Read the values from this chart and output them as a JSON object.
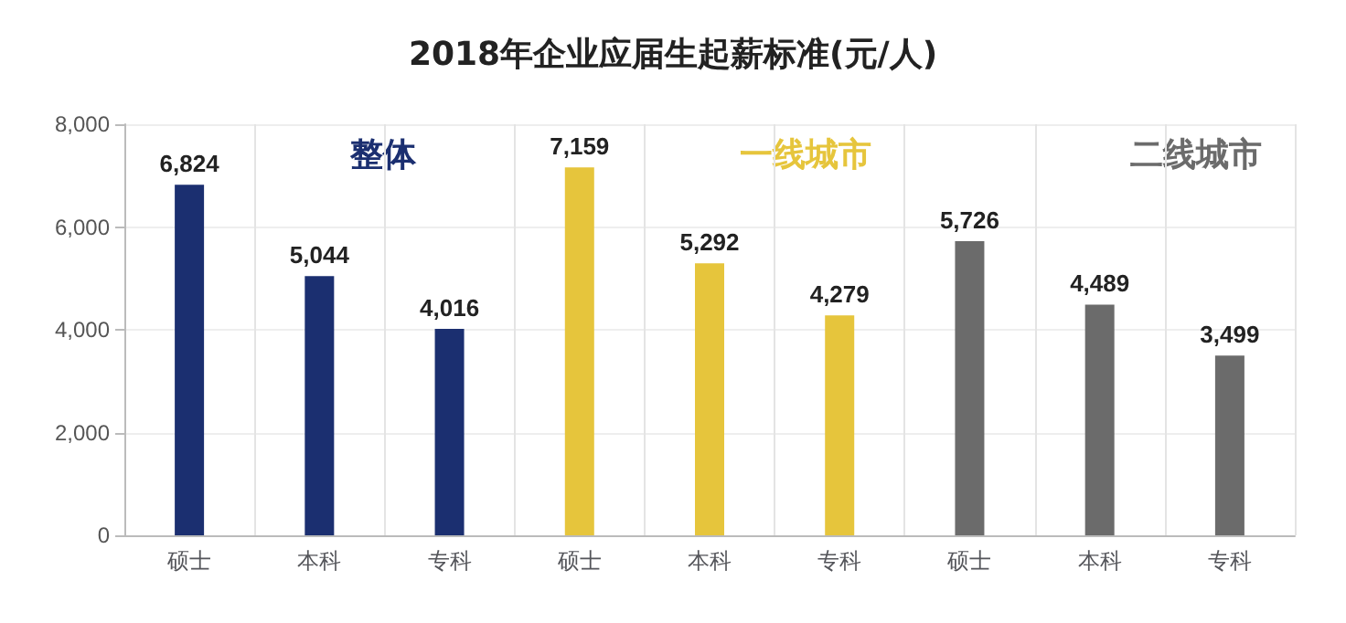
{
  "chart_data": {
    "type": "bar",
    "title": "2018年企业应届生起薪标准(元/人)",
    "categories": [
      "硕士",
      "本科",
      "专科",
      "硕士",
      "本科",
      "专科",
      "硕士",
      "本科",
      "专科"
    ],
    "values": [
      6824,
      5044,
      4016,
      7159,
      5292,
      4279,
      5726,
      4489,
      3499
    ],
    "value_labels": [
      "6,824",
      "5,044",
      "4,016",
      "7,159",
      "5,292",
      "4,279",
      "5,726",
      "4,489",
      "3,499"
    ],
    "colors": [
      "#1b2f70",
      "#1b2f70",
      "#1b2f70",
      "#e6c53c",
      "#e6c53c",
      "#e6c53c",
      "#6b6b6b",
      "#6b6b6b",
      "#6b6b6b"
    ],
    "ylim": [
      0,
      8000
    ],
    "yticks": [
      0,
      {
        "value": 2000,
        "label": "2,000"
      },
      {
        "value": 4000,
        "label": "4,000"
      },
      {
        "value": 6000,
        "label": "6,000"
      },
      {
        "value": 8000,
        "label": "8,000"
      }
    ],
    "grid": true,
    "annotations": [
      "整体",
      "一线城市",
      "二线城市"
    ]
  }
}
